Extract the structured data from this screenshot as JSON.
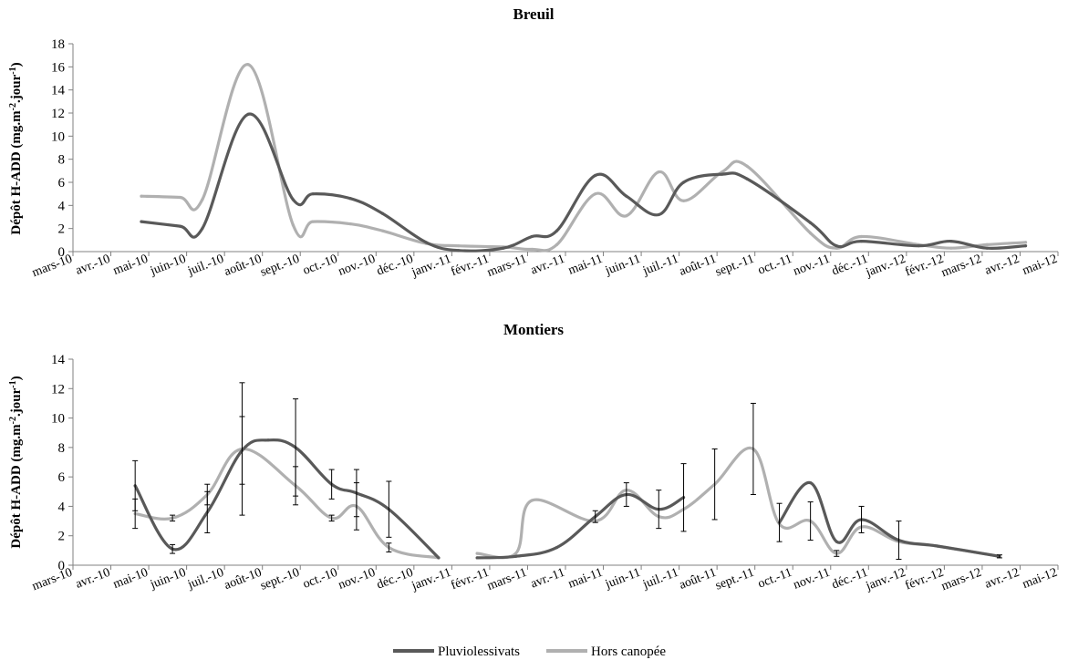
{
  "colors": {
    "pluviolessivats": "#595959",
    "hors_canopee": "#b0b0b0",
    "axis": "#808080",
    "errorbar": "#000000"
  },
  "legend": {
    "items": [
      "Pluviolessivats",
      "Hors canopée"
    ],
    "position": "bottom-center"
  },
  "chart_data": [
    {
      "type": "line",
      "title": "Breuil",
      "xlabel": "",
      "ylabel": "Dépôt H-ADD (mg.m-2.jour-1)",
      "ylabel_main": "Dépôt H-ADD (mg.m",
      "ylabel_sup1": "-2",
      "ylabel_mid": ".jour",
      "ylabel_sup2": "-1",
      "ylabel_end": ")",
      "ylim": [
        0,
        18
      ],
      "yticks": [
        0,
        2,
        4,
        6,
        8,
        10,
        12,
        14,
        16,
        18
      ],
      "x_range": [
        "2010-03-01",
        "2012-05-01"
      ],
      "x_tick_labels": [
        "mars-10",
        "avr.-10",
        "mai-10",
        "juin-10",
        "juil.-10",
        "août-10",
        "sept.-10",
        "oct.-10",
        "nov.-10",
        "déc.-10",
        "janv.-11",
        "févr.-11",
        "mars-11",
        "avr.-11",
        "mai-11",
        "juin-11",
        "juil.-11",
        "août-11",
        "sept.-11",
        "oct.-11",
        "nov.-11",
        "déc.-11",
        "janv.-12",
        "févr.-12",
        "mars-12",
        "avr.-12",
        "mai-12"
      ],
      "grid": false,
      "series": [
        {
          "name": "Pluviolessivats",
          "segments": [
            [
              {
                "x": "2010-04-25",
                "y": 2.6
              },
              {
                "x": "2010-05-26",
                "y": 2.2
              },
              {
                "x": "2010-06-13",
                "y": 2.0
              },
              {
                "x": "2010-07-20",
                "y": 11.9
              },
              {
                "x": "2010-08-25",
                "y": 4.5
              },
              {
                "x": "2010-09-10",
                "y": 5.0
              },
              {
                "x": "2010-10-10",
                "y": 4.6
              },
              {
                "x": "2010-11-05",
                "y": 3.3
              },
              {
                "x": "2010-12-10",
                "y": 0.8
              },
              {
                "x": "2011-01-05",
                "y": 0.1
              },
              {
                "x": "2011-02-10",
                "y": 0.3
              },
              {
                "x": "2011-03-05",
                "y": 1.3
              },
              {
                "x": "2011-03-25",
                "y": 1.8
              },
              {
                "x": "2011-04-25",
                "y": 6.6
              },
              {
                "x": "2011-05-20",
                "y": 4.8
              },
              {
                "x": "2011-06-15",
                "y": 3.2
              },
              {
                "x": "2011-07-05",
                "y": 6.0
              },
              {
                "x": "2011-08-05",
                "y": 6.7
              },
              {
                "x": "2011-08-25",
                "y": 6.3
              },
              {
                "x": "2011-10-15",
                "y": 2.5
              },
              {
                "x": "2011-11-05",
                "y": 0.5
              },
              {
                "x": "2011-11-25",
                "y": 0.9
              },
              {
                "x": "2012-01-10",
                "y": 0.5
              },
              {
                "x": "2012-02-05",
                "y": 0.9
              },
              {
                "x": "2012-03-05",
                "y": 0.3
              },
              {
                "x": "2012-04-05",
                "y": 0.5
              }
            ]
          ]
        },
        {
          "name": "Hors canopée",
          "segments": [
            [
              {
                "x": "2010-04-25",
                "y": 4.8
              },
              {
                "x": "2010-05-26",
                "y": 4.7
              },
              {
                "x": "2010-06-13",
                "y": 4.5
              },
              {
                "x": "2010-07-20",
                "y": 16.2
              },
              {
                "x": "2010-08-25",
                "y": 2.3
              },
              {
                "x": "2010-09-10",
                "y": 2.6
              },
              {
                "x": "2010-10-10",
                "y": 2.4
              },
              {
                "x": "2010-11-05",
                "y": 1.8
              },
              {
                "x": "2010-12-10",
                "y": 0.7
              },
              {
                "x": "2011-01-05",
                "y": 0.5
              },
              {
                "x": "2011-02-10",
                "y": 0.4
              },
              {
                "x": "2011-03-05",
                "y": 0.2
              },
              {
                "x": "2011-03-25",
                "y": 0.6
              },
              {
                "x": "2011-04-25",
                "y": 5.0
              },
              {
                "x": "2011-05-20",
                "y": 3.1
              },
              {
                "x": "2011-06-15",
                "y": 6.9
              },
              {
                "x": "2011-07-05",
                "y": 4.4
              },
              {
                "x": "2011-08-05",
                "y": 6.9
              },
              {
                "x": "2011-08-25",
                "y": 7.4
              },
              {
                "x": "2011-10-15",
                "y": 1.6
              },
              {
                "x": "2011-11-05",
                "y": 0.3
              },
              {
                "x": "2011-11-25",
                "y": 1.3
              },
              {
                "x": "2012-01-10",
                "y": 0.6
              },
              {
                "x": "2012-02-05",
                "y": 0.3
              },
              {
                "x": "2012-03-05",
                "y": 0.6
              },
              {
                "x": "2012-04-05",
                "y": 0.8
              }
            ]
          ]
        }
      ]
    },
    {
      "type": "line",
      "title": "Montiers",
      "xlabel": "",
      "ylabel": "Dépôt H-ADD (mg.m-2.jour-1)",
      "ylabel_main": "Dépôt H-ADD (mg.m",
      "ylabel_sup1": "-2",
      "ylabel_mid": ".jour",
      "ylabel_sup2": "-1",
      "ylabel_end": ")",
      "ylim": [
        0,
        14
      ],
      "yticks": [
        0,
        2,
        4,
        6,
        8,
        10,
        12,
        14
      ],
      "x_range": [
        "2010-03-01",
        "2012-05-01"
      ],
      "x_tick_labels": [
        "mars-10",
        "avr.-10",
        "mai-10",
        "juin-10",
        "juil.-10",
        "août-10",
        "sept.-10",
        "oct.-10",
        "nov.-10",
        "déc.-10",
        "janv.-11",
        "févr.-11",
        "mars-11",
        "avr.-11",
        "mai-11",
        "juin-11",
        "juil.-11",
        "août-11",
        "sept.-11",
        "oct.-11",
        "nov.-11",
        "déc.-11",
        "janv.-12",
        "févr.-12",
        "mars-12",
        "avr.-12",
        "mai-12"
      ],
      "grid": false,
      "series": [
        {
          "name": "Pluviolessivats",
          "segments": [
            [
              {
                "x": "2010-04-20",
                "y": 5.4,
                "err": 1.7
              },
              {
                "x": "2010-05-20",
                "y": 1.1,
                "err": 0.3
              },
              {
                "x": "2010-06-17",
                "y": 3.6,
                "err": 1.4
              },
              {
                "x": "2010-07-15",
                "y": 7.8,
                "err": 2.3
              },
              {
                "x": "2010-08-05",
                "y": 8.5
              },
              {
                "x": "2010-08-27",
                "y": 8.0,
                "err": 3.3
              },
              {
                "x": "2010-09-25",
                "y": 5.5,
                "err": 1.0
              },
              {
                "x": "2010-10-15",
                "y": 4.9,
                "err": 1.6
              },
              {
                "x": "2010-11-10",
                "y": 3.8,
                "err": 1.9
              },
              {
                "x": "2010-12-20",
                "y": 0.5
              }
            ],
            [
              {
                "x": "2011-01-20",
                "y": 0.5
              },
              {
                "x": "2011-02-20",
                "y": 0.6
              },
              {
                "x": "2011-03-25",
                "y": 1.2
              },
              {
                "x": "2011-04-25",
                "y": 3.3,
                "err": 0.4
              },
              {
                "x": "2011-05-20",
                "y": 4.8,
                "err": 0.8
              },
              {
                "x": "2011-06-15",
                "y": 3.8,
                "err": 1.3
              },
              {
                "x": "2011-07-05",
                "y": 4.6,
                "err": 2.3
              }
            ],
            [
              {
                "x": "2011-09-20",
                "y": 2.9,
                "err": 1.3
              },
              {
                "x": "2011-10-15",
                "y": 5.6
              },
              {
                "x": "2011-11-05",
                "y": 1.6
              },
              {
                "x": "2011-11-25",
                "y": 3.1,
                "err": 0.9
              },
              {
                "x": "2011-12-25",
                "y": 1.7,
                "err": 1.3
              },
              {
                "x": "2012-01-25",
                "y": 1.3
              },
              {
                "x": "2012-03-15",
                "y": 0.6
              }
            ]
          ]
        },
        {
          "name": "Hors canopée",
          "segments": [
            [
              {
                "x": "2010-04-20",
                "y": 3.5,
                "err": 1.0
              },
              {
                "x": "2010-05-20",
                "y": 3.2,
                "err": 0.2
              },
              {
                "x": "2010-06-17",
                "y": 4.8,
                "err": 0.7
              },
              {
                "x": "2010-07-15",
                "y": 7.9,
                "err": 4.5
              },
              {
                "x": "2010-08-27",
                "y": 5.4,
                "err": 1.3
              },
              {
                "x": "2010-09-25",
                "y": 3.2,
                "err": 0.2
              },
              {
                "x": "2010-10-15",
                "y": 4.0,
                "err": 1.6
              },
              {
                "x": "2010-11-10",
                "y": 1.2,
                "err": 0.3
              },
              {
                "x": "2010-12-20",
                "y": 0.5
              }
            ],
            [
              {
                "x": "2011-01-20",
                "y": 0.8
              },
              {
                "x": "2011-02-20",
                "y": 0.8
              },
              {
                "x": "2011-03-05",
                "y": 4.4
              },
              {
                "x": "2011-04-25",
                "y": 3.0
              },
              {
                "x": "2011-05-20",
                "y": 5.1
              },
              {
                "x": "2011-06-15",
                "y": 3.3
              },
              {
                "x": "2011-07-05",
                "y": 3.8
              },
              {
                "x": "2011-07-30",
                "y": 5.5,
                "err": 2.4
              },
              {
                "x": "2011-08-30",
                "y": 7.9,
                "err": 3.1
              },
              {
                "x": "2011-09-20",
                "y": 2.8
              },
              {
                "x": "2011-10-15",
                "y": 3.0,
                "err": 1.3
              },
              {
                "x": "2011-11-05",
                "y": 0.8,
                "err": 0.2
              },
              {
                "x": "2011-11-25",
                "y": 2.6
              },
              {
                "x": "2011-12-25",
                "y": 1.6
              },
              {
                "x": "2012-01-25",
                "y": 1.3
              },
              {
                "x": "2012-03-15",
                "y": 0.6,
                "err": 0.1
              }
            ]
          ]
        }
      ]
    }
  ]
}
